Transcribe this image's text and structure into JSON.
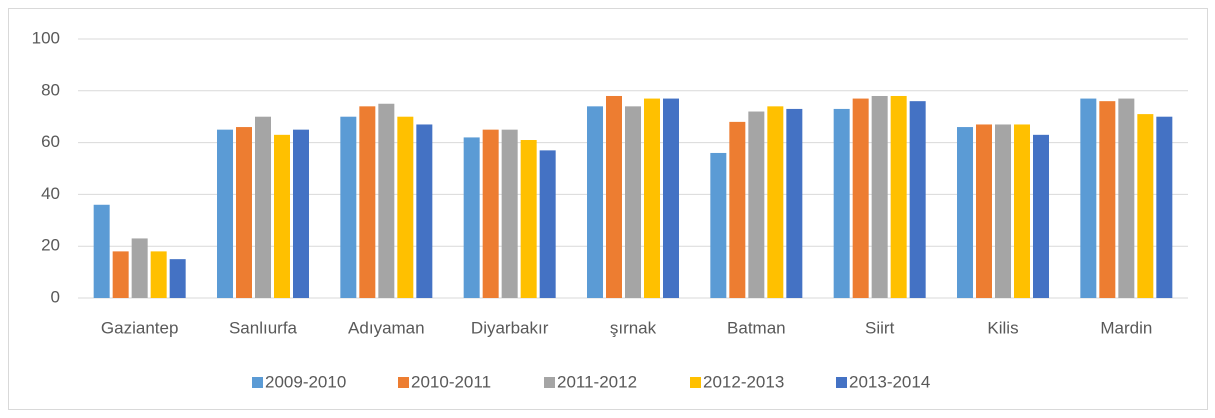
{
  "chart_data": {
    "type": "bar",
    "categories": [
      "Gaziantep",
      "Sanlıurfa",
      "Adıyaman",
      "Diyarbakır",
      "şırnak",
      "Batman",
      "Siirt",
      "Kilis",
      "Mardin"
    ],
    "series": [
      {
        "name": "2009-2010",
        "color": "#5b9bd5",
        "values": [
          36,
          65,
          70,
          62,
          74,
          56,
          73,
          66,
          77
        ]
      },
      {
        "name": "2010-2011",
        "color": "#ed7d31",
        "values": [
          18,
          66,
          74,
          65,
          78,
          68,
          77,
          67,
          76
        ]
      },
      {
        "name": "2011-2012",
        "color": "#a5a5a5",
        "values": [
          23,
          70,
          75,
          65,
          74,
          72,
          78,
          67,
          77
        ]
      },
      {
        "name": "2012-2013",
        "color": "#ffc000",
        "values": [
          18,
          63,
          70,
          61,
          77,
          74,
          78,
          67,
          71
        ]
      },
      {
        "name": "2013-2014",
        "color": "#4472c4",
        "values": [
          15,
          65,
          67,
          57,
          77,
          73,
          76,
          63,
          70
        ]
      }
    ],
    "ylim": [
      0,
      100
    ],
    "yticks": [
      0,
      20,
      40,
      60,
      80,
      100
    ],
    "grid": true,
    "legend": "bottom"
  }
}
